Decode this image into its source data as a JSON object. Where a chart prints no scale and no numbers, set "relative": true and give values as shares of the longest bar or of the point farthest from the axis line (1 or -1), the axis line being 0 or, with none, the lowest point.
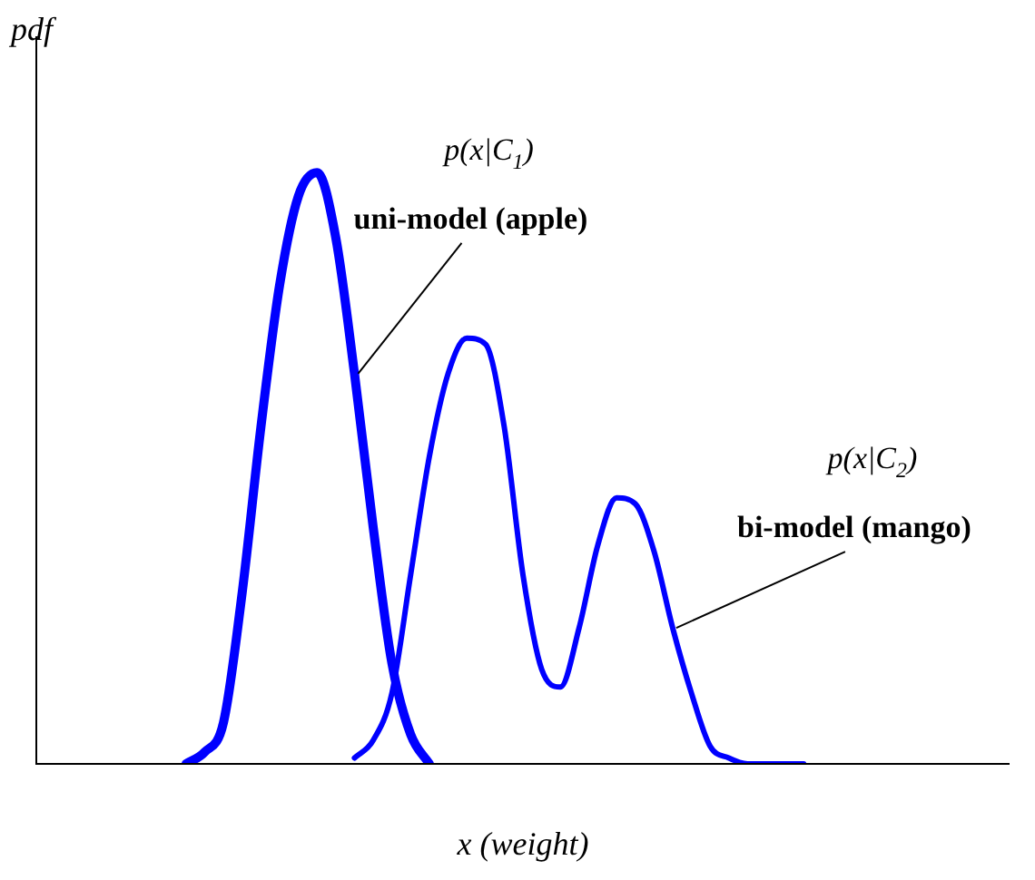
{
  "chart_data": {
    "type": "line",
    "relative": true,
    "xlabel": "x (weight)",
    "ylabel": "pdf",
    "categories": [
      null,
      null,
      null,
      null,
      null,
      null,
      null,
      null,
      null,
      null,
      null,
      null,
      null,
      null,
      null,
      null,
      null,
      null,
      null,
      null,
      null,
      null,
      null,
      null,
      null,
      null,
      null,
      null,
      null,
      null,
      null,
      null,
      null,
      null,
      null,
      null,
      null,
      null,
      null,
      null,
      null,
      null,
      null,
      null,
      null,
      null,
      null,
      null,
      null,
      null,
      null,
      null,
      null
    ],
    "series": [
      {
        "name": "uni-model (apple)",
        "color": "#0000ff",
        "values": [
          null,
          null,
          null,
          null,
          null,
          null,
          null,
          null,
          0,
          0.02,
          0.07,
          0.29,
          0.57,
          0.81,
          0.96,
          1,
          0.89,
          0.66,
          0.4,
          0.17,
          0.05,
          0,
          null,
          null,
          null,
          null,
          null,
          null,
          null,
          null,
          null,
          null,
          null,
          null,
          null,
          null,
          null,
          null,
          null,
          null,
          null,
          null,
          null,
          null,
          null,
          null,
          null,
          null,
          null,
          null,
          null,
          null,
          null
        ]
      },
      {
        "name": "bi-model (mango)",
        "color": "#0000ff",
        "values": [
          null,
          null,
          null,
          null,
          null,
          null,
          null,
          null,
          null,
          null,
          null,
          null,
          null,
          null,
          null,
          null,
          null,
          0.01,
          0.04,
          0.12,
          0.32,
          0.52,
          0.66,
          0.72,
          0.71,
          0.57,
          0.32,
          0.16,
          0.13,
          0.23,
          0.37,
          0.45,
          0.44,
          0.36,
          0.23,
          0.12,
          0.03,
          0.01,
          0,
          0,
          0,
          0,
          null,
          null,
          null,
          null,
          null,
          null,
          null,
          null,
          null,
          null,
          null
        ]
      }
    ],
    "annotations": [
      "p(x|C$_{1}$)",
      "p(x|C$_{2}$)"
    ],
    "grid": false,
    "legend": false
  }
}
